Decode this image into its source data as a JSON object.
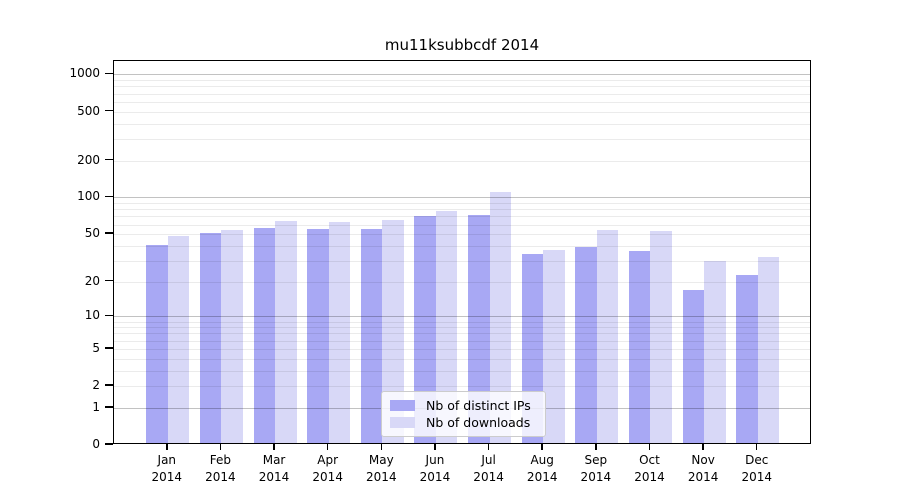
{
  "chart_data": {
    "type": "bar",
    "title": "mu11ksubbcdf 2014",
    "categories": [
      "Jan",
      "Feb",
      "Mar",
      "Apr",
      "May",
      "Jun",
      "Jul",
      "Aug",
      "Sep",
      "Oct",
      "Nov",
      "Dec"
    ],
    "year": "2014",
    "series": [
      {
        "name": "Nb of distinct IPs",
        "color": "#a8a8f4",
        "values": [
          41,
          51,
          56,
          55,
          55,
          71,
          72,
          34,
          39,
          36,
          17,
          23
        ]
      },
      {
        "name": "Nb of downloads",
        "color": "#d8d8f7",
        "values": [
          48,
          54,
          64,
          63,
          65,
          78,
          110,
          37,
          54,
          53,
          30,
          32
        ]
      }
    ],
    "xlabel": "",
    "ylabel": "",
    "y_ticks": [
      0,
      1,
      2,
      5,
      10,
      20,
      50,
      100,
      200,
      500,
      1000
    ],
    "y_scale": "log10(1+y)",
    "ylim": [
      0,
      1285
    ],
    "grid": true,
    "legend_position": "inside-bottom-center"
  },
  "colors": {
    "bar_distinct_ips": "#a8a8f4",
    "bar_downloads": "#d8d8f7",
    "grid_major": "#c2c2c2",
    "grid_minor": "#ececec",
    "axis": "#000000",
    "legend_border": "#cccccc",
    "text": "#000000"
  }
}
